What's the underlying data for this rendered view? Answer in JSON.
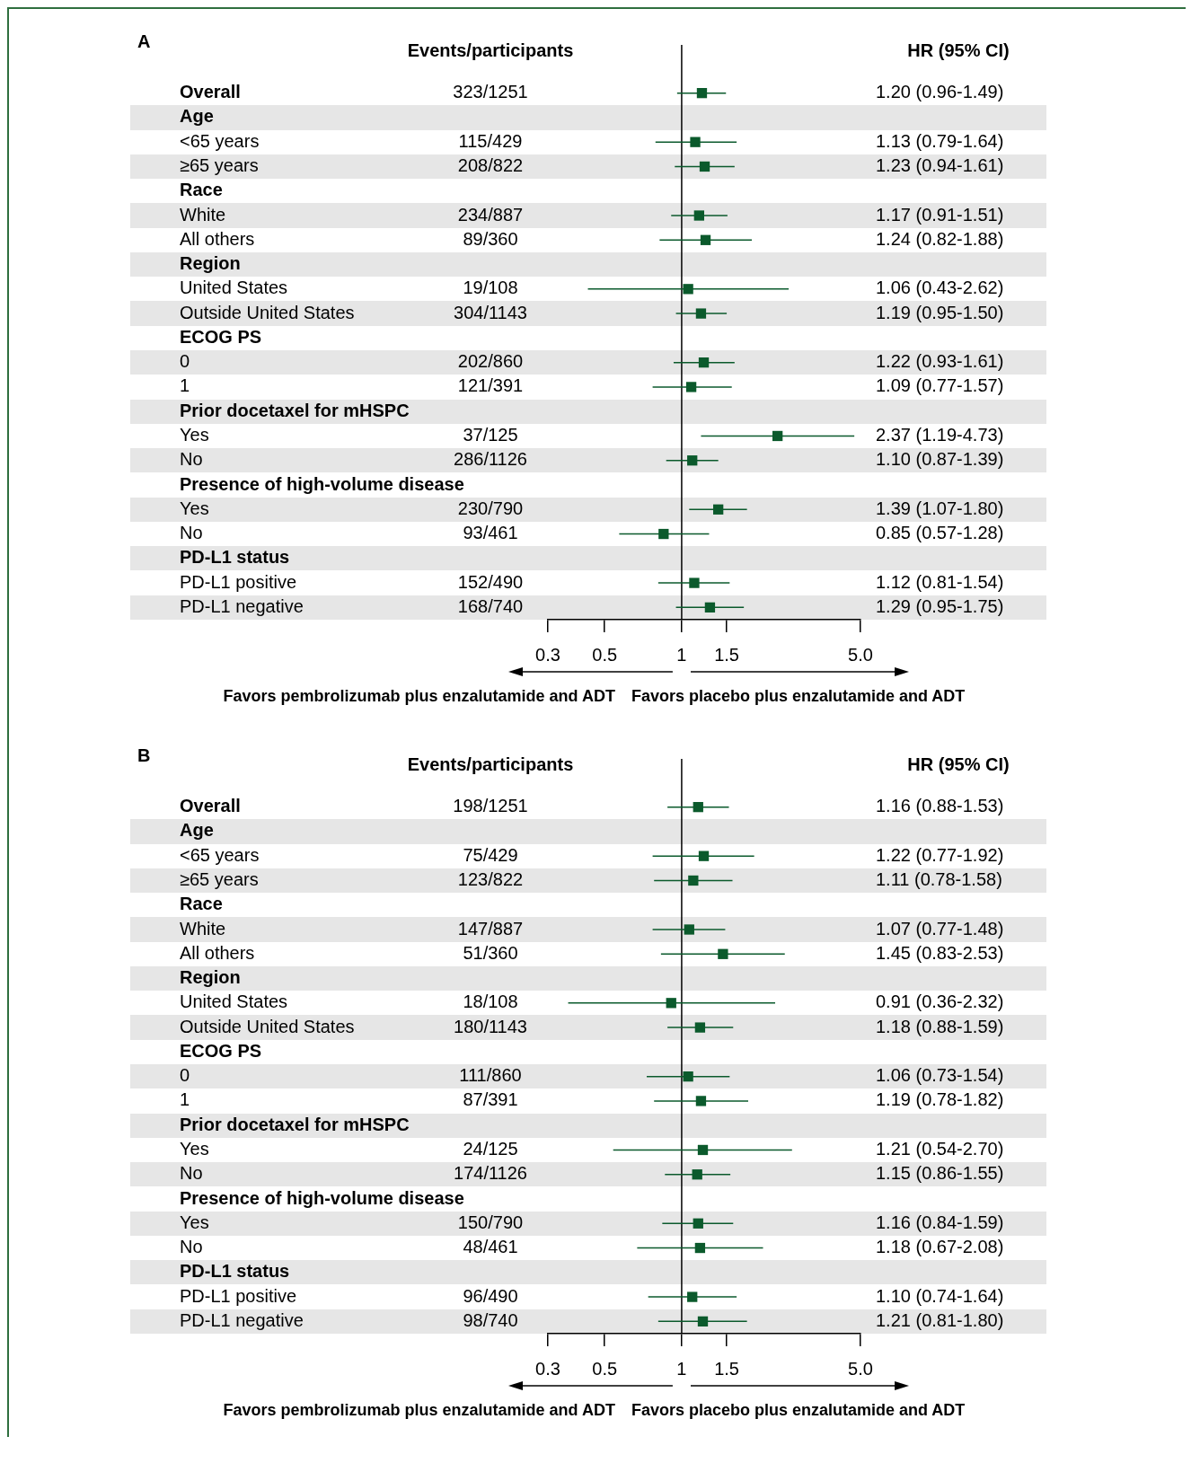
{
  "chart_data": [
    {
      "type": "scatter",
      "title": "A",
      "y2label": "HR (95% CI)",
      "orientation": "horizontal",
      "log": "x",
      "marker": "square",
      "color": "#0b5a2c",
      "xlim": [
        0.3,
        5
      ],
      "xticks": [
        0.3,
        0.5,
        1,
        1.5,
        {
          "value": 5,
          "label": "5.0"
        }
      ],
      "ref_lines": [
        {
          "axis": "x",
          "value": 1,
          "color": "#000000"
        }
      ],
      "annotations": [
        "Events/participants",
        "Favors pembrolizumab plus enzalutamide and ADT",
        "Favors placebo plus enzalutamide and ADT",
        "323/1251",
        "115/429",
        "208/822",
        "234/887",
        "89/360",
        "19/108",
        "304/1143",
        "202/860",
        "121/391",
        "37/125",
        "286/1126",
        "230/790",
        "93/461",
        "152/490",
        "168/740"
      ],
      "categories": [
        "Overall",
        "Age",
        "<65 years",
        "≥65 years",
        "Race",
        "White",
        "All others",
        "Region",
        "United States",
        "Outside United States",
        "ECOG PS",
        "0",
        "1",
        "Prior docetaxel for mHSPC",
        "Yes",
        "No",
        "Presence of high-volume disease",
        "Yes",
        "No",
        "PD-L1 status",
        "PD-L1 positive",
        "PD-L1 negative"
      ],
      "values": [
        1.2,
        null,
        1.13,
        1.23,
        null,
        1.17,
        1.24,
        null,
        1.06,
        1.19,
        null,
        1.22,
        1.09,
        null,
        2.37,
        1.1,
        null,
        1.39,
        0.85,
        null,
        1.12,
        1.29
      ],
      "errors": [
        [
          0.96,
          1.49
        ],
        null,
        [
          0.79,
          1.64
        ],
        [
          0.94,
          1.61
        ],
        null,
        [
          0.91,
          1.51
        ],
        [
          0.82,
          1.88
        ],
        null,
        [
          0.43,
          2.62
        ],
        [
          0.95,
          1.5
        ],
        null,
        [
          0.93,
          1.61
        ],
        [
          0.77,
          1.57
        ],
        null,
        [
          1.19,
          4.73
        ],
        [
          0.87,
          1.39
        ],
        null,
        [
          1.07,
          1.8
        ],
        [
          0.57,
          1.28
        ],
        null,
        [
          0.81,
          1.54
        ],
        [
          0.95,
          1.75
        ]
      ],
      "value_labels": [
        "1.20 (0.96-1.49)",
        null,
        "1.13 (0.79-1.64)",
        "1.23 (0.94-1.61)",
        null,
        "1.17 (0.91-1.51)",
        "1.24 (0.82-1.88)",
        null,
        "1.06 (0.43-2.62)",
        "1.19 (0.95-1.50)",
        null,
        "1.22 (0.93-1.61)",
        "1.09 (0.77-1.57)",
        null,
        "2.37 (1.19-4.73)",
        "1.10 (0.87-1.39)",
        null,
        "1.39 (1.07-1.80)",
        "0.85 (0.57-1.28)",
        null,
        "1.12 (0.81-1.54)",
        "1.29 (0.95-1.75)"
      ]
    },
    {
      "type": "scatter",
      "title": "B",
      "y2label": "HR (95% CI)",
      "orientation": "horizontal",
      "log": "x",
      "marker": "square",
      "color": "#0b5a2c",
      "xlim": [
        0.3,
        5
      ],
      "xticks": [
        0.3,
        0.5,
        1,
        1.5,
        {
          "value": 5,
          "label": "5.0"
        }
      ],
      "ref_lines": [
        {
          "axis": "x",
          "value": 1,
          "color": "#000000"
        }
      ],
      "annotations": [
        "Events/participants",
        "Favors pembrolizumab plus enzalutamide and ADT",
        "Favors placebo plus enzalutamide and ADT",
        "198/1251",
        "75/429",
        "123/822",
        "147/887",
        "51/360",
        "18/108",
        "180/1143",
        "111/860",
        "87/391",
        "24/125",
        "174/1126",
        "150/790",
        "48/461",
        "96/490",
        "98/740"
      ],
      "categories": [
        "Overall",
        "Age",
        "<65 years",
        "≥65 years",
        "Race",
        "White",
        "All others",
        "Region",
        "United States",
        "Outside United States",
        "ECOG PS",
        "0",
        "1",
        "Prior docetaxel for mHSPC",
        "Yes",
        "No",
        "Presence of high-volume disease",
        "Yes",
        "No",
        "PD-L1 status",
        "PD-L1 positive",
        "PD-L1 negative"
      ],
      "values": [
        1.16,
        null,
        1.22,
        1.11,
        null,
        1.07,
        1.45,
        null,
        0.91,
        1.18,
        null,
        1.06,
        1.19,
        null,
        1.21,
        1.15,
        null,
        1.16,
        1.18,
        null,
        1.1,
        1.21
      ],
      "errors": [
        [
          0.88,
          1.53
        ],
        null,
        [
          0.77,
          1.92
        ],
        [
          0.78,
          1.58
        ],
        null,
        [
          0.77,
          1.48
        ],
        [
          0.83,
          2.53
        ],
        null,
        [
          0.36,
          2.32
        ],
        [
          0.88,
          1.59
        ],
        null,
        [
          0.73,
          1.54
        ],
        [
          0.78,
          1.82
        ],
        null,
        [
          0.54,
          2.7
        ],
        [
          0.86,
          1.55
        ],
        null,
        [
          0.84,
          1.59
        ],
        [
          0.67,
          2.08
        ],
        null,
        [
          0.74,
          1.64
        ],
        [
          0.81,
          1.8
        ]
      ],
      "value_labels": [
        "1.16 (0.88-1.53)",
        null,
        "1.22 (0.77-1.92)",
        "1.11 (0.78-1.58)",
        null,
        "1.07 (0.77-1.48)",
        "1.45 (0.83-2.53)",
        null,
        "0.91 (0.36-2.32)",
        "1.18 (0.88-1.59)",
        null,
        "1.06 (0.73-1.54)",
        "1.19 (0.78-1.82)",
        null,
        "1.21 (0.54-2.70)",
        "1.15 (0.86-1.55)",
        null,
        "1.16 (0.84-1.59)",
        "1.18 (0.67-2.08)",
        null,
        "1.10 (0.74-1.64)",
        "1.21 (0.81-1.80)"
      ]
    }
  ]
}
